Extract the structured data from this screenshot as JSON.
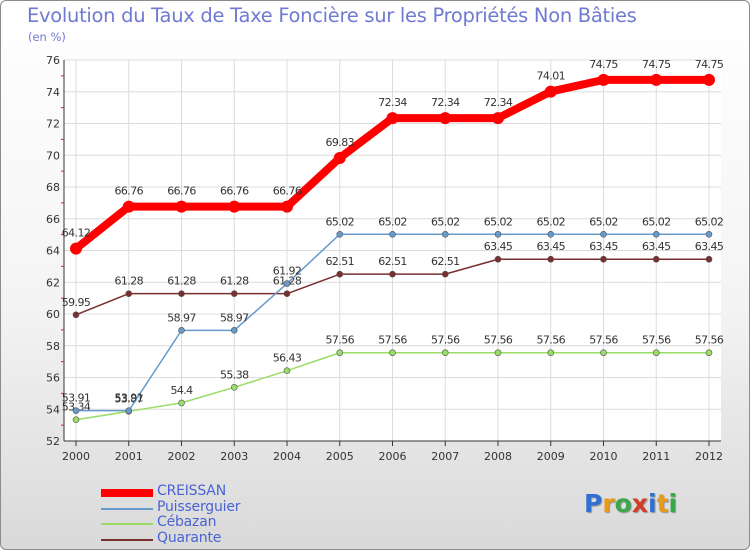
{
  "title": "Evolution du Taux de Taxe Foncière sur les Propriétés Non Bâties",
  "unit_label": "(en %)",
  "logo": {
    "letters": [
      "P",
      "r",
      "o",
      "x",
      "i",
      "t",
      "i"
    ],
    "colors": [
      "#2f6fd1",
      "#e89a1a",
      "#3aa84a",
      "#d43c2a",
      "#2f6fd1",
      "#e89a1a",
      "#3aa84a"
    ]
  },
  "chart_data": {
    "type": "line",
    "x": [
      "2000",
      "2001",
      "2002",
      "2003",
      "2004",
      "2005",
      "2006",
      "2007",
      "2008",
      "2009",
      "2010",
      "2011",
      "2012"
    ],
    "ylim": [
      52,
      76
    ],
    "yticks": [
      52,
      54,
      56,
      58,
      60,
      62,
      64,
      66,
      68,
      70,
      72,
      74,
      76
    ],
    "grid": true,
    "legend_position": "bottom-left",
    "series": [
      {
        "name": "CREISSAN",
        "color": "#ff0000",
        "values": [
          64.12,
          66.76,
          66.76,
          66.76,
          66.76,
          69.83,
          72.34,
          72.34,
          72.34,
          74.01,
          74.75,
          74.75,
          74.75
        ],
        "labels": [
          "64.12",
          "66.76",
          "66.76",
          "66.76",
          "66.76",
          "69.83",
          "72.34",
          "72.34",
          "72.34",
          "74.01",
          "74.75",
          "74.75",
          "74.75"
        ]
      },
      {
        "name": "Puisserguier",
        "color": "#6699cc",
        "values": [
          53.91,
          53.91,
          58.97,
          58.97,
          61.92,
          65.02,
          65.02,
          65.02,
          65.02,
          65.02,
          65.02,
          65.02,
          65.02
        ],
        "labels": [
          "53.91",
          "53.91",
          "58.97",
          "58.97",
          "61.92",
          "65.02",
          "65.02",
          "65.02",
          "65.02",
          "65.02",
          "65.02",
          "65.02",
          "65.02"
        ]
      },
      {
        "name": "Cébazan",
        "color": "#99dd66",
        "values": [
          53.34,
          53.87,
          54.4,
          55.38,
          56.43,
          57.56,
          57.56,
          57.56,
          57.56,
          57.56,
          57.56,
          57.56,
          57.56
        ],
        "labels": [
          "53.34",
          "53.87",
          "54.4",
          "55.38",
          "56.43",
          "57.56",
          "57.56",
          "57.56",
          "57.56",
          "57.56",
          "57.56",
          "57.56",
          "57.56"
        ]
      },
      {
        "name": "Quarante",
        "color": "#7a2e2e",
        "values": [
          59.95,
          61.28,
          61.28,
          61.28,
          61.28,
          62.51,
          62.51,
          62.51,
          63.45,
          63.45,
          63.45,
          63.45,
          63.45
        ],
        "labels": [
          "59.95",
          "61.28",
          "61.28",
          "61.28",
          "61.28",
          "62.51",
          "62.51",
          "62.51",
          "63.45",
          "63.45",
          "63.45",
          "63.45",
          "63.45"
        ]
      }
    ]
  }
}
